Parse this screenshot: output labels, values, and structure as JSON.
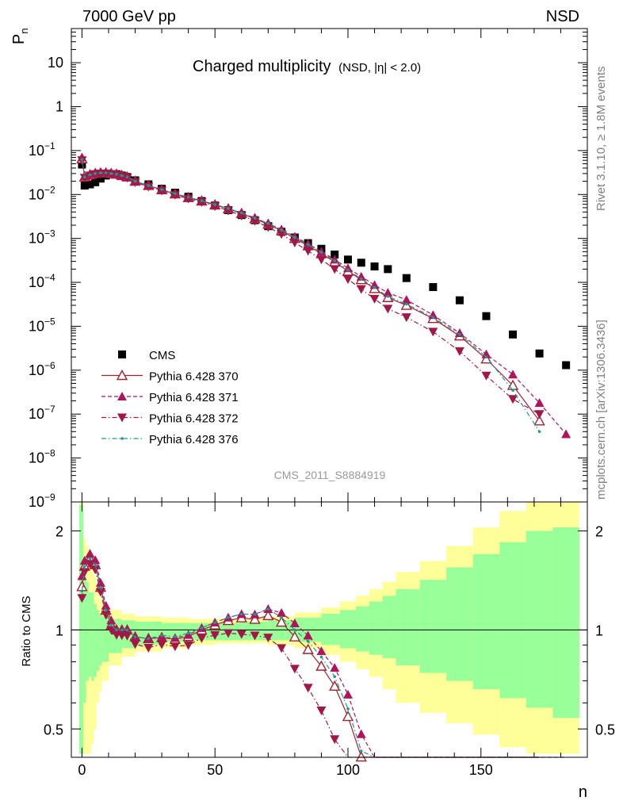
{
  "header": {
    "left": "7000 GeV pp",
    "right": "NSD"
  },
  "side_labels": {
    "rivet": "Rivet 3.1.10, ≥ 1.8M events",
    "mcplots": "mcplots.cern.ch [arXiv:1306.3436]"
  },
  "chart_data": [
    {
      "type": "scatter",
      "title": "Charged multiplicity",
      "subtitle": "(NSD, |η| < 2.0)",
      "watermark": "CMS_2011_S8884919",
      "ylabel_main": "P",
      "ylabel_sub": "n",
      "xlabel": "n",
      "xlim": [
        -4,
        190
      ],
      "ylim": [
        1e-09,
        60
      ],
      "yscale": "log",
      "xticks": [
        0,
        50,
        100,
        150
      ],
      "yticks": [
        {
          "v": 10,
          "base": "10",
          "exp": ""
        },
        {
          "v": 1,
          "base": "1",
          "exp": ""
        },
        {
          "v": 0.1,
          "base": "10",
          "exp": "−1"
        },
        {
          "v": 0.01,
          "base": "10",
          "exp": "−2"
        },
        {
          "v": 0.001,
          "base": "10",
          "exp": "−3"
        },
        {
          "v": 0.0001,
          "base": "10",
          "exp": "−4"
        },
        {
          "v": 1e-05,
          "base": "10",
          "exp": "−5"
        },
        {
          "v": 1e-06,
          "base": "10",
          "exp": "−6"
        },
        {
          "v": 1e-07,
          "base": "10",
          "exp": "−7"
        },
        {
          "v": 1e-08,
          "base": "10",
          "exp": "−8"
        },
        {
          "v": 1e-09,
          "base": "10",
          "exp": "−9"
        }
      ],
      "legend": {
        "position": "bottom-left",
        "entries": [
          "CMS",
          "Pythia 6.428 370",
          "Pythia 6.428 371",
          "Pythia 6.428 372",
          "Pythia 6.428 376"
        ]
      },
      "colors": {
        "data": "#000000",
        "s370": "#a0232d",
        "s371": "#b0145a",
        "s372": "#a01848",
        "s376": "#1e9a8e"
      },
      "series": [
        {
          "name": "CMS",
          "x": [
            0,
            1,
            3,
            5,
            7,
            9,
            11,
            13,
            15,
            17,
            20,
            25,
            30,
            35,
            40,
            45,
            50,
            55,
            60,
            65,
            70,
            75,
            80,
            85,
            90,
            95,
            100,
            105,
            110,
            115,
            122,
            132,
            142,
            152,
            162,
            172,
            182
          ],
          "y": [
            0.048,
            0.016,
            0.017,
            0.019,
            0.023,
            0.027,
            0.029,
            0.029,
            0.027,
            0.025,
            0.021,
            0.017,
            0.0135,
            0.011,
            0.0089,
            0.0071,
            0.0056,
            0.0044,
            0.0034,
            0.0026,
            0.0019,
            0.00142,
            0.00105,
            0.00078,
            0.00058,
            0.00043,
            0.00033,
            0.00028,
            0.00023,
            0.0002,
            0.000125,
            7.8e-05,
            3.9e-05,
            1.7e-05,
            6.5e-06,
            2.4e-06,
            1.3e-06
          ]
        },
        {
          "name": "Pythia 6.428 370",
          "x": [
            0,
            1,
            3,
            5,
            7,
            9,
            11,
            13,
            15,
            17,
            20,
            25,
            30,
            35,
            40,
            45,
            50,
            55,
            60,
            65,
            70,
            75,
            80,
            85,
            90,
            95,
            100,
            105,
            110,
            115,
            122,
            132,
            142,
            152,
            162,
            172
          ],
          "y": [
            0.065,
            0.025,
            0.028,
            0.03,
            0.031,
            0.031,
            0.03,
            0.029,
            0.027,
            0.025,
            0.02,
            0.016,
            0.0128,
            0.0103,
            0.0085,
            0.0071,
            0.0058,
            0.0047,
            0.0037,
            0.0028,
            0.0021,
            0.0015,
            0.001,
            0.00068,
            0.00045,
            0.00029,
            0.00018,
            0.000115,
            7.2e-05,
            4.5e-05,
            3e-05,
            1.5e-05,
            6e-06,
            1.8e-06,
            4.5e-07,
            7e-08
          ]
        },
        {
          "name": "Pythia 6.428 371",
          "x": [
            0,
            1,
            3,
            5,
            7,
            9,
            11,
            13,
            15,
            17,
            20,
            25,
            30,
            35,
            40,
            45,
            50,
            55,
            60,
            65,
            70,
            75,
            80,
            85,
            90,
            95,
            100,
            105,
            110,
            115,
            122,
            132,
            142,
            152,
            162,
            172,
            182
          ],
          "y": [
            0.07,
            0.026,
            0.029,
            0.031,
            0.032,
            0.032,
            0.031,
            0.029,
            0.027,
            0.025,
            0.02,
            0.016,
            0.0128,
            0.0104,
            0.0086,
            0.0072,
            0.0059,
            0.0048,
            0.0038,
            0.0029,
            0.0022,
            0.0016,
            0.0011,
            0.00075,
            0.0005,
            0.00033,
            0.00021,
            0.000135,
            8.7e-05,
            5.8e-05,
            4e-05,
            1.8e-05,
            7e-06,
            2.3e-06,
            8e-07,
            1.8e-07,
            3.5e-08
          ]
        },
        {
          "name": "Pythia 6.428 372",
          "x": [
            0,
            1,
            3,
            5,
            7,
            9,
            11,
            13,
            15,
            17,
            20,
            25,
            30,
            35,
            40,
            45,
            50,
            55,
            60,
            65,
            70,
            75,
            80,
            85,
            90,
            95,
            100,
            105,
            110,
            115,
            122,
            132,
            142,
            152,
            162,
            172
          ],
          "y": [
            0.06,
            0.024,
            0.027,
            0.029,
            0.03,
            0.03,
            0.029,
            0.028,
            0.026,
            0.024,
            0.019,
            0.015,
            0.0122,
            0.0098,
            0.008,
            0.0067,
            0.0054,
            0.0043,
            0.0033,
            0.0025,
            0.0018,
            0.00125,
            0.0008,
            0.00052,
            0.00033,
            0.0002,
            0.000118,
            7e-05,
            4.2e-05,
            2.5e-05,
            1.6e-05,
            7.5e-06,
            2.7e-06,
            7.5e-07,
            2.2e-07,
            1e-07
          ]
        },
        {
          "name": "Pythia 6.428 376",
          "x": [
            0,
            1,
            3,
            5,
            7,
            9,
            11,
            13,
            15,
            17,
            20,
            25,
            30,
            35,
            40,
            45,
            50,
            55,
            60,
            65,
            70,
            75,
            80,
            85,
            90,
            95,
            100,
            105,
            110,
            115,
            122,
            132,
            142,
            152,
            162,
            172
          ],
          "y": [
            0.063,
            0.025,
            0.028,
            0.03,
            0.031,
            0.031,
            0.03,
            0.029,
            0.027,
            0.025,
            0.02,
            0.016,
            0.013,
            0.0105,
            0.0087,
            0.0072,
            0.0059,
            0.0048,
            0.0038,
            0.0029,
            0.0022,
            0.00155,
            0.00105,
            0.00072,
            0.00048,
            0.00031,
            0.00019,
            0.00012,
            7.6e-05,
            4.8e-05,
            3.2e-05,
            1.6e-05,
            6.5e-06,
            2e-06,
            3.5e-07,
            4e-08
          ]
        }
      ]
    },
    {
      "type": "line",
      "ylabel": "Ratio to CMS",
      "xlabel": "n",
      "xlim": [
        -4,
        190
      ],
      "ylim": [
        0.41,
        2.45
      ],
      "yscale": "log",
      "xticks": [
        0,
        50,
        100,
        150
      ],
      "yticks": [
        {
          "v": 0.5,
          "label": "0.5"
        },
        {
          "v": 1,
          "label": "1"
        },
        {
          "v": 2,
          "label": "2"
        }
      ],
      "reference_line": 1,
      "bands": {
        "edges": [
          -1,
          0.5,
          1.5,
          2.5,
          3.5,
          4.5,
          5.5,
          6.5,
          7.5,
          10,
          15,
          20,
          30,
          40,
          50,
          60,
          70,
          80,
          90,
          97,
          103,
          108,
          113,
          118,
          127,
          137,
          147,
          157,
          167,
          177,
          187
        ],
        "green_lo": [
          0.42,
          0.6,
          0.7,
          0.72,
          0.7,
          0.72,
          0.75,
          0.78,
          0.8,
          0.85,
          0.88,
          0.9,
          0.92,
          0.93,
          0.93,
          0.93,
          0.93,
          0.92,
          0.9,
          0.88,
          0.86,
          0.84,
          0.82,
          0.78,
          0.74,
          0.7,
          0.66,
          0.62,
          0.58,
          0.54
        ],
        "green_hi": [
          2.4,
          1.6,
          1.4,
          1.3,
          1.3,
          1.2,
          1.15,
          1.12,
          1.1,
          1.08,
          1.07,
          1.06,
          1.05,
          1.05,
          1.05,
          1.06,
          1.07,
          1.09,
          1.12,
          1.15,
          1.18,
          1.22,
          1.27,
          1.33,
          1.42,
          1.55,
          1.7,
          1.85,
          2.0,
          2.05
        ],
        "yellow_lo": [
          0.42,
          0.42,
          0.42,
          0.42,
          0.45,
          0.5,
          0.6,
          0.65,
          0.7,
          0.78,
          0.83,
          0.86,
          0.88,
          0.9,
          0.91,
          0.91,
          0.9,
          0.88,
          0.84,
          0.8,
          0.76,
          0.72,
          0.66,
          0.6,
          0.56,
          0.52,
          0.48,
          0.44,
          0.42,
          0.42
        ],
        "yellow_hi": [
          2.45,
          1.9,
          1.8,
          1.75,
          1.6,
          1.45,
          1.35,
          1.25,
          1.2,
          1.15,
          1.12,
          1.1,
          1.09,
          1.08,
          1.08,
          1.09,
          1.1,
          1.13,
          1.17,
          1.22,
          1.27,
          1.33,
          1.4,
          1.5,
          1.62,
          1.8,
          2.05,
          2.3,
          2.45,
          2.45
        ]
      }
    }
  ]
}
